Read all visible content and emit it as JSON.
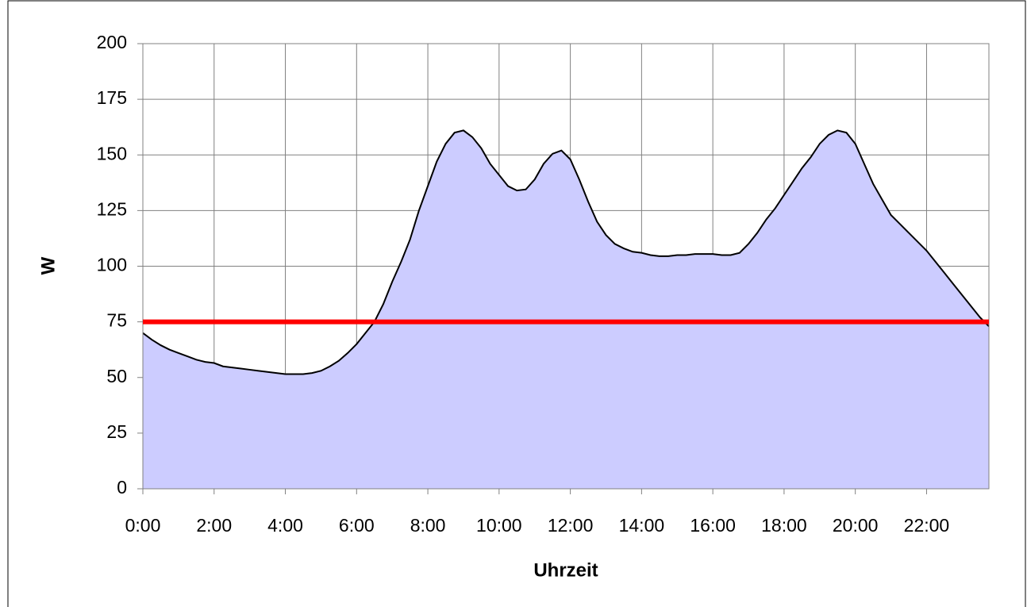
{
  "chart_data": {
    "type": "area",
    "x_label": "Uhrzeit",
    "y_label": "W",
    "categories": [
      "0:00",
      null,
      null,
      null,
      null,
      null,
      null,
      null,
      "2:00",
      null,
      null,
      null,
      null,
      null,
      null,
      null,
      "4:00",
      null,
      null,
      null,
      null,
      null,
      null,
      null,
      "6:00",
      null,
      null,
      null,
      null,
      null,
      null,
      null,
      "8:00",
      null,
      null,
      null,
      null,
      null,
      null,
      null,
      "10:00",
      null,
      null,
      null,
      null,
      null,
      null,
      null,
      "12:00",
      null,
      null,
      null,
      null,
      null,
      null,
      null,
      "14:00",
      null,
      null,
      null,
      null,
      null,
      null,
      null,
      "16:00",
      null,
      null,
      null,
      null,
      null,
      null,
      null,
      "18:00",
      null,
      null,
      null,
      null,
      null,
      null,
      null,
      "20:00",
      null,
      null,
      null,
      null,
      null,
      null,
      null,
      "22:00",
      null,
      null,
      null,
      null,
      null,
      null,
      null
    ],
    "values": [
      70,
      67,
      64.5,
      62.5,
      61,
      59.5,
      58,
      57,
      56.5,
      55,
      54.5,
      54,
      53.5,
      53,
      52.5,
      52,
      51.5,
      51.5,
      51.5,
      52,
      53,
      55,
      57.5,
      61,
      65,
      70,
      75,
      83,
      93,
      102,
      112,
      125,
      136,
      147,
      155,
      160,
      161,
      158,
      153,
      146,
      141,
      136,
      134,
      134.5,
      139,
      146,
      150.5,
      152,
      148,
      139,
      129,
      120,
      114,
      110,
      108,
      106.5,
      106,
      105,
      104.5,
      104.5,
      105,
      105,
      105.5,
      105.5,
      105.5,
      105,
      105,
      106,
      110,
      115,
      121,
      126,
      132,
      138,
      144,
      149,
      155,
      159,
      161,
      160,
      155,
      146,
      137,
      130,
      123,
      119,
      115,
      111,
      107,
      102,
      97,
      92,
      87,
      82,
      77,
      73
    ],
    "color": "#ccccff",
    "line_color": "#000000",
    "threshold": {
      "value": 75,
      "color": "#ff0000"
    },
    "ylim": [
      0,
      200
    ],
    "yticks": [
      0,
      25,
      50,
      75,
      100,
      125,
      150,
      175,
      200
    ],
    "grid": true
  }
}
